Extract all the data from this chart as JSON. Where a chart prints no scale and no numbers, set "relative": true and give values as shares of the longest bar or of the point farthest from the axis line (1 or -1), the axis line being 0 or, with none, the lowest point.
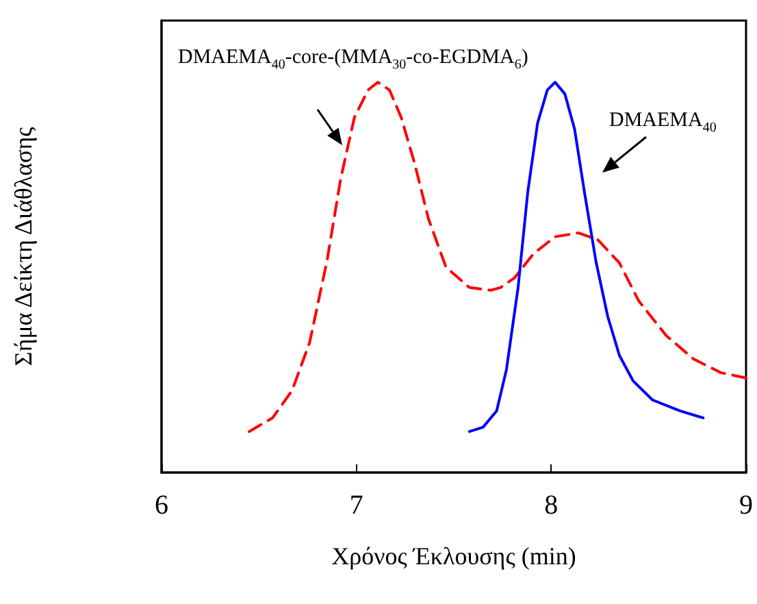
{
  "chart_data": {
    "type": "line",
    "xlabel": "Χρόνος Έκλουσης (min)",
    "ylabel": "Σήμα Δείκτη Διάθλασης",
    "relative": true,
    "xlim": [
      6,
      9
    ],
    "xticks": [
      6,
      7,
      8,
      9
    ],
    "grid": false,
    "marker": "none",
    "series": [
      {
        "color": "#ff0000",
        "line_style": "dashed",
        "x": [
          6.45,
          6.57,
          6.67,
          6.76,
          6.85,
          6.92,
          6.99,
          7.06,
          7.11,
          7.17,
          7.23,
          7.3,
          7.37,
          7.46,
          7.58,
          7.69,
          7.74,
          7.81,
          7.91,
          8.02,
          8.14,
          8.24,
          8.35,
          8.45,
          8.59,
          8.73,
          8.87,
          9.0
        ],
        "values": [
          0.105,
          0.14,
          0.21,
          0.333,
          0.544,
          0.754,
          0.91,
          0.98,
          1,
          0.98,
          0.91,
          0.79,
          0.65,
          0.526,
          0.474,
          0.467,
          0.474,
          0.498,
          0.561,
          0.604,
          0.614,
          0.596,
          0.537,
          0.439,
          0.351,
          0.291,
          0.256,
          0.242
        ]
      },
      {
        "color": "#0000ff",
        "line_style": "solid",
        "x": [
          7.58,
          7.65,
          7.72,
          7.77,
          7.83,
          7.88,
          7.93,
          7.98,
          8.02,
          8.07,
          8.12,
          8.17,
          8.23,
          8.29,
          8.35,
          8.42,
          8.52,
          8.66,
          8.78
        ],
        "values": [
          0.105,
          0.116,
          0.158,
          0.263,
          0.474,
          0.72,
          0.895,
          0.98,
          1,
          0.97,
          0.88,
          0.72,
          0.54,
          0.4,
          0.3,
          0.235,
          0.186,
          0.158,
          0.14
        ]
      }
    ],
    "annotations": [
      "DMAEMA$_{40}$-core-(MMA$_{30}$-co-EGDMA$_{6}$)",
      "DMAEMA$_{40}$"
    ]
  }
}
